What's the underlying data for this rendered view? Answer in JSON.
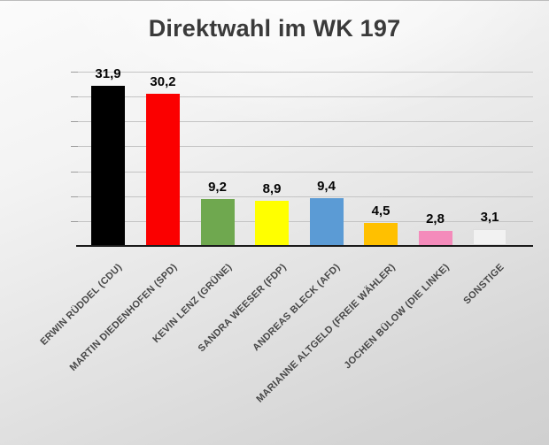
{
  "title": "Direktwahl im WK 197",
  "chart_data": {
    "type": "bar",
    "title": "Direktwahl im WK 197",
    "categories": [
      "ERWIN RÜDDEL (CDU)",
      "MARTIN DIEDENHOFEN (SPD)",
      "KEVIN LENZ (GRÜNE)",
      "SANDRA WEESER (FDP)",
      "ANDREAS BLECK (AFD)",
      "MARIANNE ALTGELD (FREIE WÄHLER)",
      "JOCHEN BÜLOW (DIE LINKE)",
      "SONSTIGE"
    ],
    "values": [
      31.9,
      30.2,
      9.2,
      8.9,
      9.4,
      4.5,
      2.8,
      3.1
    ],
    "value_labels": [
      "31,9",
      "30,2",
      "9,2",
      "8,9",
      "9,4",
      "4,5",
      "2,8",
      "3,1"
    ],
    "bar_colors": [
      "#000000",
      "#FB0000",
      "#6FA84F",
      "#FFFF00",
      "#5B9BD5",
      "#FFC000",
      "#F48BBB",
      "#F2F2F2"
    ],
    "bar_border_colors": [
      null,
      null,
      null,
      null,
      null,
      null,
      null,
      "#DEDEDE"
    ],
    "xlabel": "",
    "ylabel": "",
    "ylim": [
      0,
      35
    ],
    "grid_step": 5,
    "grid": true,
    "legend": false,
    "gridline_color": "#c4c4c4",
    "axis_color": "#1b1b1b",
    "label_color": "#474747"
  }
}
